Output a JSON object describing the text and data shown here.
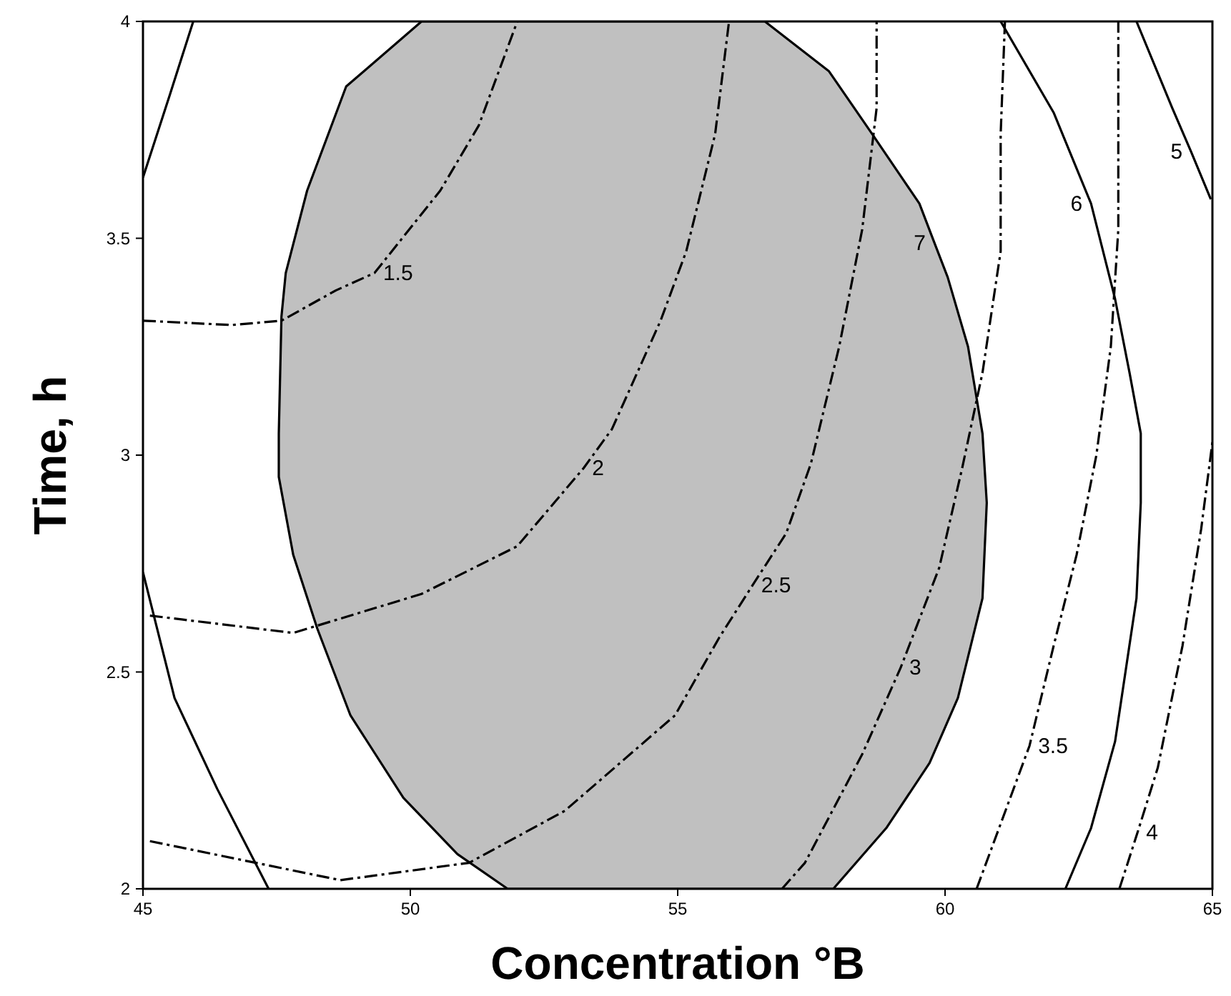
{
  "chart_data": {
    "type": "line",
    "xlabel": "Concentration °B",
    "ylabel": "Time, h",
    "xlim": [
      45,
      65
    ],
    "ylim": [
      2,
      4
    ],
    "xticks": [
      45,
      50,
      55,
      60,
      65
    ],
    "yticks": [
      2,
      2.5,
      3,
      3.5,
      4
    ],
    "grid": false,
    "series": [
      {
        "type": "area",
        "color": "#c0c0c0",
        "line_style": "solid",
        "x": [
          50.21,
          56.63,
          57.83,
          58.64,
          59.52,
          59.8,
          60.05,
          60.43,
          60.7,
          60.78,
          60.7,
          60.24,
          59.71,
          58.9,
          57.91,
          51.82,
          50.88,
          49.87,
          48.88,
          48.26,
          47.81,
          47.54,
          47.54,
          47.59,
          47.67,
          48.07,
          48.8,
          50.21
        ],
        "values": [
          4,
          4,
          3.885,
          3.74,
          3.58,
          3.49,
          3.41,
          3.25,
          3.05,
          2.89,
          2.67,
          2.44,
          2.29,
          2.14,
          2,
          2,
          2.08,
          2.21,
          2.4,
          2.6,
          2.77,
          2.95,
          3.05,
          3.32,
          3.42,
          3.61,
          3.85,
          4
        ]
      },
      {
        "color": "#000000",
        "line_style": "solid",
        "x": [
          45.94,
          45.5,
          45
        ],
        "values": [
          4,
          3.83,
          3.64
        ]
      },
      {
        "color": "#000000",
        "line_style": "solid",
        "x": [
          45,
          45.59,
          46.39,
          47.35
        ],
        "values": [
          2.73,
          2.44,
          2.23,
          2
        ]
      },
      {
        "color": "#000000",
        "line_style": "solid",
        "x": [
          61.04,
          62.03,
          62.73,
          63.18,
          63.45,
          63.66,
          63.66,
          63.58,
          63.18,
          62.73,
          62.25
        ],
        "values": [
          4,
          3.79,
          3.58,
          3.36,
          3.19,
          3.05,
          2.89,
          2.67,
          2.34,
          2.14,
          2
        ]
      },
      {
        "color": "#000000",
        "line_style": "solid",
        "x": [
          63.58,
          64.25,
          64.6,
          64.97
        ],
        "values": [
          4,
          3.8,
          3.7,
          3.59
        ]
      },
      {
        "color": "#000000",
        "line_style": "dashed",
        "x": [
          45,
          46.66,
          47.59,
          48.61,
          49.33,
          50.56,
          51.28,
          52
        ],
        "values": [
          3.31,
          3.3,
          3.31,
          3.38,
          3.42,
          3.61,
          3.76,
          4
        ]
      },
      {
        "color": "#000000",
        "line_style": "dashed",
        "x": [
          45.13,
          47.81,
          50.21,
          52,
          53.24,
          53.77,
          54.68,
          55.16,
          55.7,
          55.96
        ],
        "values": [
          2.63,
          2.59,
          2.68,
          2.79,
          2.97,
          3.06,
          3.31,
          3.47,
          3.74,
          4
        ]
      },
      {
        "color": "#000000",
        "line_style": "dashed",
        "x": [
          45.13,
          48.69,
          51.1,
          52.89,
          54.95,
          55.78,
          56.4,
          57.03,
          57.49,
          58.02,
          58.45,
          58.72,
          58.72
        ],
        "values": [
          2.11,
          2.02,
          2.06,
          2.18,
          2.4,
          2.58,
          2.7,
          2.82,
          2.98,
          3.25,
          3.52,
          3.8,
          4
        ]
      },
      {
        "color": "#000000",
        "line_style": "dashed",
        "x": [
          56.95,
          57.38,
          58.45,
          59.17,
          59.89,
          60.32,
          60.7,
          61.04,
          61.04,
          61.12
        ],
        "values": [
          2,
          2.06,
          2.31,
          2.51,
          2.74,
          2.97,
          3.19,
          3.47,
          3.74,
          4
        ]
      },
      {
        "color": "#000000",
        "line_style": "dashed",
        "x": [
          60.59,
          61.58,
          62.03,
          62.46,
          62.83,
          63.1,
          63.24,
          63.24
        ],
        "values": [
          2,
          2.33,
          2.56,
          2.77,
          3,
          3.25,
          3.52,
          4
        ]
      },
      {
        "color": "#000000",
        "line_style": "dashed",
        "x": [
          63.26,
          63.6,
          63.98,
          64.44,
          64.79,
          65
        ],
        "values": [
          2,
          2.13,
          2.28,
          2.56,
          2.83,
          3.03
        ]
      }
    ],
    "annotations": [
      {
        "text": "1.5",
        "x": 49.33,
        "y": 3.42
      },
      {
        "text": "2",
        "x": 53.24,
        "y": 2.97
      },
      {
        "text": "2.5",
        "x": 56.4,
        "y": 2.7
      },
      {
        "text": "3",
        "x": 59.17,
        "y": 2.51
      },
      {
        "text": "3.5",
        "x": 61.58,
        "y": 2.33
      },
      {
        "text": "4",
        "x": 63.6,
        "y": 2.13
      },
      {
        "text": "5",
        "x": 64.6,
        "y": 3.7
      },
      {
        "text": "6",
        "x": 62.73,
        "y": 3.58
      },
      {
        "text": "7",
        "x": 59.8,
        "y": 3.49
      }
    ]
  }
}
